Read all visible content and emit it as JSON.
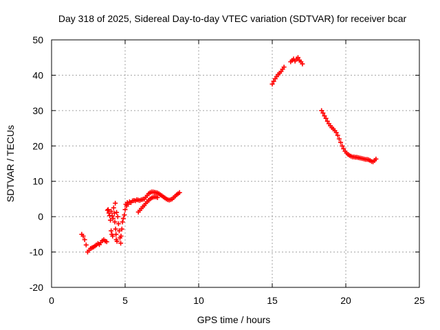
{
  "chart_data": {
    "type": "scatter",
    "title": "Day 318 of 2025, Sidereal Day-to-day VTEC variation (SDTVAR) for receiver bcar",
    "xlabel": "GPS time / hours",
    "ylabel": "SDTVAR / TECUs",
    "xlim": [
      0,
      25
    ],
    "ylim": [
      -20,
      50
    ],
    "xticks": [
      0,
      5,
      10,
      15,
      20,
      25
    ],
    "yticks": [
      -20,
      -10,
      0,
      10,
      20,
      30,
      40,
      50
    ],
    "xtick_labels": [
      "0",
      "5",
      "10",
      "15",
      "20",
      "25"
    ],
    "ytick_labels": [
      "-20",
      "-10",
      "0",
      "10",
      "20",
      "30",
      "40",
      "50"
    ],
    "grid": true,
    "grid_style": "dotted",
    "marker": "+",
    "series_color": "#ff0000",
    "series": [
      {
        "points": [
          [
            2.05,
            -5.0
          ],
          [
            2.15,
            -5.5
          ],
          [
            2.25,
            -6.5
          ],
          [
            2.35,
            -8.0
          ],
          [
            2.45,
            -10.0
          ],
          [
            2.55,
            -9.5
          ],
          [
            2.65,
            -9.0
          ],
          [
            2.75,
            -8.8
          ],
          [
            2.85,
            -8.6
          ],
          [
            2.95,
            -8.3
          ],
          [
            3.05,
            -8.0
          ],
          [
            3.15,
            -7.6
          ],
          [
            3.25,
            -7.9
          ],
          [
            3.35,
            -7.3
          ],
          [
            3.45,
            -6.8
          ],
          [
            3.55,
            -6.5
          ],
          [
            3.65,
            -6.9
          ],
          [
            3.75,
            -7.1
          ],
          [
            3.8,
            1.8
          ],
          [
            3.85,
            2.0
          ],
          [
            3.9,
            1.0
          ],
          [
            3.95,
            0.3
          ],
          [
            4.0,
            -1.0
          ],
          [
            4.05,
            -4.0
          ],
          [
            4.1,
            -5.0
          ],
          [
            4.15,
            -5.5
          ],
          [
            4.05,
            1.5
          ],
          [
            4.12,
            0.2
          ],
          [
            4.18,
            -0.5
          ],
          [
            4.22,
            2.5
          ],
          [
            4.27,
            1.0
          ],
          [
            4.3,
            -1.5
          ],
          [
            4.35,
            -3.5
          ],
          [
            4.38,
            -5.0
          ],
          [
            4.4,
            -6.5
          ],
          [
            4.45,
            -7.0
          ],
          [
            4.33,
            3.8
          ],
          [
            4.42,
            1.2
          ],
          [
            4.5,
            0.0
          ],
          [
            4.55,
            -2.0
          ],
          [
            4.6,
            -4.0
          ],
          [
            4.65,
            -6.0
          ],
          [
            4.7,
            -7.5
          ],
          [
            4.72,
            -5.5
          ],
          [
            4.78,
            -3.5
          ],
          [
            4.82,
            -1.5
          ],
          [
            4.88,
            -0.5
          ],
          [
            4.95,
            0.5
          ],
          [
            5.0,
            2.0
          ],
          [
            5.05,
            3.5
          ],
          [
            5.1,
            3.0
          ],
          [
            5.15,
            4.0
          ],
          [
            5.2,
            3.5
          ],
          [
            5.3,
            4.2
          ],
          [
            5.4,
            4.0
          ],
          [
            5.5,
            4.5
          ],
          [
            5.6,
            4.6
          ],
          [
            5.7,
            4.5
          ],
          [
            5.8,
            4.8
          ],
          [
            5.9,
            4.7
          ],
          [
            6.0,
            4.6
          ],
          [
            6.1,
            4.8
          ],
          [
            6.2,
            4.9
          ],
          [
            6.3,
            5.0
          ],
          [
            6.4,
            5.5
          ],
          [
            6.5,
            6.0
          ],
          [
            6.6,
            6.5
          ],
          [
            6.7,
            6.8
          ],
          [
            6.8,
            7.0
          ],
          [
            6.9,
            7.0
          ],
          [
            7.0,
            6.9
          ],
          [
            7.1,
            6.8
          ],
          [
            7.2,
            6.7
          ],
          [
            7.3,
            6.5
          ],
          [
            7.4,
            6.2
          ],
          [
            7.5,
            5.9
          ],
          [
            7.6,
            5.6
          ],
          [
            7.7,
            5.3
          ],
          [
            7.8,
            5.0
          ],
          [
            7.9,
            4.8
          ],
          [
            8.0,
            4.7
          ],
          [
            8.1,
            4.8
          ],
          [
            8.2,
            5.0
          ],
          [
            8.3,
            5.4
          ],
          [
            8.4,
            5.8
          ],
          [
            8.5,
            6.2
          ],
          [
            8.6,
            6.5
          ],
          [
            8.7,
            6.8
          ],
          [
            5.9,
            1.3
          ],
          [
            6.0,
            1.8
          ],
          [
            6.1,
            2.3
          ],
          [
            6.2,
            2.8
          ],
          [
            6.3,
            3.2
          ],
          [
            6.4,
            3.7
          ],
          [
            6.5,
            4.2
          ],
          [
            6.6,
            4.6
          ],
          [
            6.7,
            5.0
          ],
          [
            6.8,
            5.3
          ],
          [
            6.9,
            5.5
          ],
          [
            7.0,
            5.6
          ],
          [
            7.1,
            5.6
          ],
          [
            7.2,
            5.4
          ]
        ]
      },
      {
        "points": [
          [
            15.0,
            37.5
          ],
          [
            15.1,
            38.3
          ],
          [
            15.2,
            39.0
          ],
          [
            15.3,
            39.6
          ],
          [
            15.4,
            40.2
          ],
          [
            15.5,
            40.6
          ],
          [
            15.6,
            41.1
          ],
          [
            15.7,
            41.7
          ],
          [
            15.8,
            42.3
          ],
          [
            16.25,
            43.8
          ],
          [
            16.35,
            44.2
          ],
          [
            16.45,
            44.6
          ],
          [
            16.55,
            44.0
          ],
          [
            16.65,
            44.6
          ],
          [
            16.75,
            45.0
          ],
          [
            16.85,
            44.2
          ],
          [
            16.95,
            43.8
          ],
          [
            17.05,
            43.2
          ]
        ]
      },
      {
        "points": [
          [
            18.35,
            30.0
          ],
          [
            18.45,
            29.3
          ],
          [
            18.55,
            28.5
          ],
          [
            18.65,
            27.8
          ],
          [
            18.75,
            27.0
          ],
          [
            18.85,
            26.3
          ],
          [
            18.95,
            25.7
          ],
          [
            19.05,
            25.2
          ],
          [
            19.15,
            24.8
          ],
          [
            19.25,
            24.3
          ],
          [
            19.35,
            23.8
          ],
          [
            19.45,
            23.0
          ],
          [
            19.55,
            22.0
          ],
          [
            19.65,
            21.0
          ],
          [
            19.75,
            20.0
          ],
          [
            19.85,
            19.2
          ],
          [
            19.95,
            18.5
          ],
          [
            20.05,
            18.0
          ],
          [
            20.15,
            17.6
          ],
          [
            20.25,
            17.3
          ],
          [
            20.35,
            17.1
          ],
          [
            20.45,
            16.9
          ],
          [
            20.55,
            16.9
          ],
          [
            20.65,
            16.8
          ],
          [
            20.75,
            16.8
          ],
          [
            20.85,
            16.7
          ],
          [
            20.95,
            16.6
          ],
          [
            21.05,
            16.5
          ],
          [
            21.15,
            16.4
          ],
          [
            21.25,
            16.3
          ],
          [
            21.35,
            16.2
          ],
          [
            21.45,
            16.2
          ],
          [
            21.55,
            16.1
          ],
          [
            21.65,
            15.9
          ],
          [
            21.75,
            15.6
          ],
          [
            21.85,
            15.5
          ],
          [
            21.95,
            15.9
          ],
          [
            22.05,
            16.3
          ]
        ]
      }
    ]
  }
}
